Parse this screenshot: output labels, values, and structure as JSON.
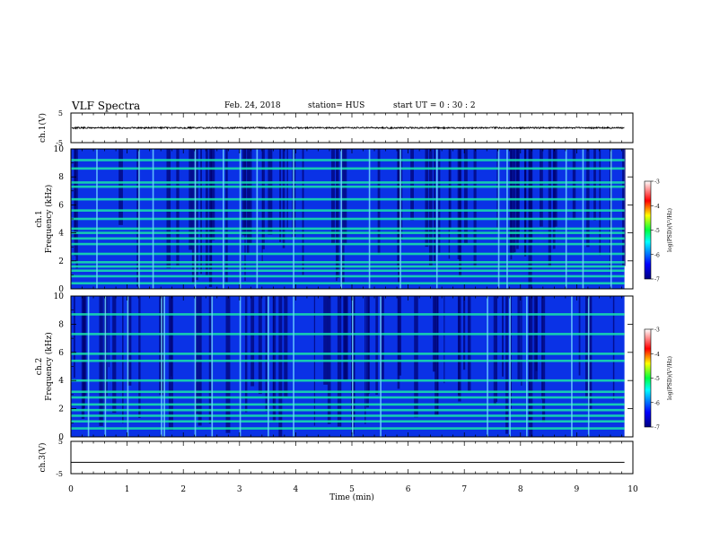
{
  "header": {
    "title": "VLF Spectra",
    "date": "Feb. 24, 2018",
    "station": "station= HUS",
    "start": "start  UT =   0 : 30 : 2"
  },
  "chart_data": [
    {
      "type": "line",
      "name": "ch1-waveform",
      "ylabel": "ch.1(V)",
      "ylim": [
        -5,
        5
      ],
      "yticks": [
        "5",
        "-5"
      ],
      "xlim": [
        0,
        10
      ],
      "trace_level": 0
    },
    {
      "type": "heatmap",
      "name": "ch1-spectrogram",
      "ylabel_top": "ch.1",
      "ylabel": "Frequency (kHz)",
      "ylim": [
        0,
        10
      ],
      "yticks": [
        "0",
        "2",
        "4",
        "6",
        "8",
        "10"
      ],
      "xlim": [
        0,
        9.85
      ],
      "bands_khz": [
        0.4,
        0.9,
        1.3,
        1.6,
        1.9,
        2.5,
        3.2,
        3.6,
        4.0,
        4.3,
        5.0,
        5.6,
        6.4,
        7.3,
        7.6,
        8.6,
        9.2
      ],
      "vertical_bursts_min": [
        0.45,
        1.2,
        1.45,
        2.2,
        2.7,
        3.0,
        3.3,
        3.95,
        4.8,
        5.3,
        5.85,
        6.5,
        7.6,
        7.75,
        8.8,
        9.1,
        9.6
      ]
    },
    {
      "type": "heatmap",
      "name": "ch2-spectrogram",
      "ylabel_top": "ch.2",
      "ylabel": "Frequency (kHz)",
      "ylim": [
        0,
        10
      ],
      "yticks": [
        "0",
        "2",
        "4",
        "6",
        "8",
        "10"
      ],
      "xlim": [
        0,
        9.85
      ],
      "bands_khz": [
        0.6,
        1.1,
        1.5,
        1.9,
        2.3,
        2.8,
        3.2,
        4.0,
        5.4,
        5.9,
        7.3,
        8.7
      ],
      "vertical_bursts_min": [
        0.3,
        0.6,
        1.0,
        1.6,
        1.65,
        2.2,
        2.5,
        3.0,
        3.5,
        3.95,
        5.0,
        5.5,
        7.4,
        7.8,
        8.1,
        8.9,
        9.2
      ]
    },
    {
      "type": "line",
      "name": "ch3-waveform",
      "ylabel": "ch.3(V)",
      "ylim": [
        -5,
        5
      ],
      "yticks": [
        "5",
        "-5"
      ],
      "xlim": [
        0,
        10
      ],
      "trace_level": -1.5
    }
  ],
  "xaxis": {
    "label": "Time  (min)",
    "range": [
      0,
      10
    ],
    "ticks": [
      "0",
      "1",
      "2",
      "3",
      "4",
      "5",
      "6",
      "7",
      "8",
      "9",
      "10"
    ]
  },
  "colorbars": [
    {
      "label": "log(PSD)(V²/Hz)",
      "range": [
        -7,
        -3
      ],
      "ticks": [
        "-3",
        "-4",
        "-5",
        "-6",
        "-7"
      ]
    },
    {
      "label": "log(PSD)(V²/Hz)",
      "range": [
        -7,
        -3
      ],
      "ticks": [
        "-3",
        "-4",
        "-5",
        "-6",
        "-7"
      ]
    }
  ],
  "colors": {
    "background": "#00008c",
    "base": "#0a32e6",
    "band": "#19e6aa",
    "burst": "#6ed2ff"
  }
}
